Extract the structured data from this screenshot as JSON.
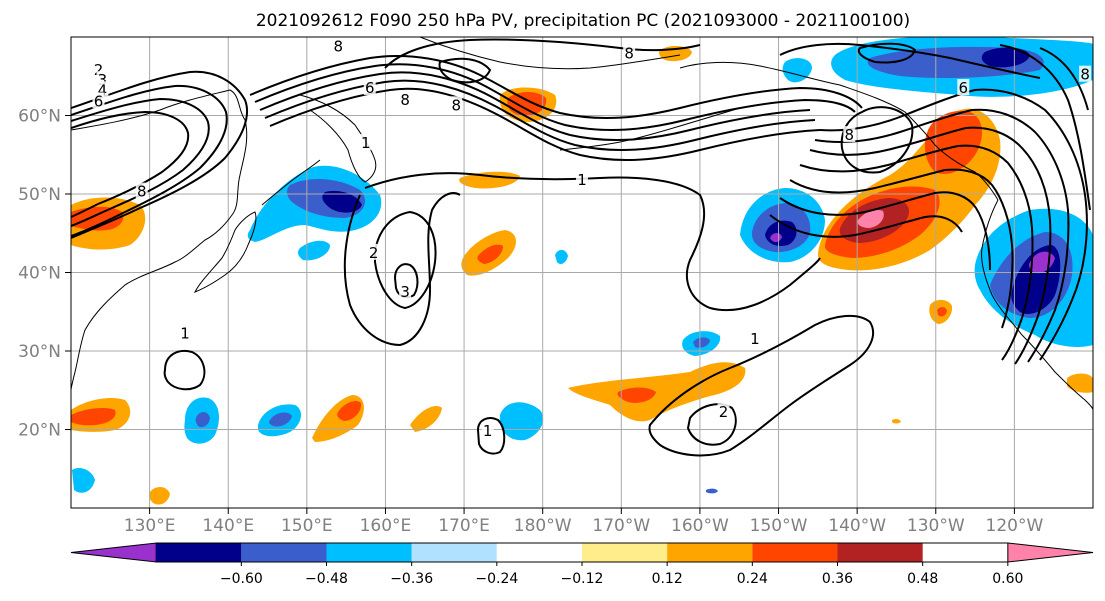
{
  "title": "2021092612 F090 250 hPa PV, precipitation PC (2021093000 - 2021100100)",
  "colors": {
    "grid": "#a9a9a9",
    "contour": "#000000",
    "coast": "#000000",
    "frame": "#000000"
  },
  "map": {
    "lon_range": [
      120,
      250
    ],
    "lat_range": [
      10,
      70
    ],
    "lon_ticks": [
      {
        "lon": 130,
        "label": "130°E"
      },
      {
        "lon": 140,
        "label": "140°E"
      },
      {
        "lon": 150,
        "label": "150°E"
      },
      {
        "lon": 160,
        "label": "160°E"
      },
      {
        "lon": 170,
        "label": "170°E"
      },
      {
        "lon": 180,
        "label": "180°W"
      },
      {
        "lon": 190,
        "label": "170°W"
      },
      {
        "lon": 200,
        "label": "160°W"
      },
      {
        "lon": 210,
        "label": "150°W"
      },
      {
        "lon": 220,
        "label": "140°W"
      },
      {
        "lon": 230,
        "label": "130°W"
      },
      {
        "lon": 240,
        "label": "120°W"
      }
    ],
    "lat_ticks": [
      {
        "lat": 20,
        "label": "20°N"
      },
      {
        "lat": 30,
        "label": "30°N"
      },
      {
        "lat": 40,
        "label": "40°N"
      },
      {
        "lat": 50,
        "label": "50°N"
      },
      {
        "lat": 60,
        "label": "60°N"
      }
    ],
    "pv_contour_labels": [
      {
        "text": "8",
        "lon": 154,
        "lat": 68.8
      },
      {
        "text": "8",
        "lon": 191,
        "lat": 67.9
      },
      {
        "text": "2",
        "lon": 123.5,
        "lat": 65.8
      },
      {
        "text": "3",
        "lon": 124,
        "lat": 64.5
      },
      {
        "text": "4",
        "lon": 124,
        "lat": 63.2
      },
      {
        "text": "6",
        "lon": 123.5,
        "lat": 61.8
      },
      {
        "text": "6",
        "lon": 158,
        "lat": 63.5
      },
      {
        "text": "8",
        "lon": 162.5,
        "lat": 62
      },
      {
        "text": "8",
        "lon": 169,
        "lat": 61.3
      },
      {
        "text": "1",
        "lon": 157.5,
        "lat": 56.5
      },
      {
        "text": "8",
        "lon": 129,
        "lat": 50.3
      },
      {
        "text": "1",
        "lon": 185,
        "lat": 51.8
      },
      {
        "text": "2",
        "lon": 158.5,
        "lat": 42.5
      },
      {
        "text": "3",
        "lon": 162.5,
        "lat": 37.5
      },
      {
        "text": "1",
        "lon": 134.5,
        "lat": 32.2
      },
      {
        "text": "1",
        "lon": 207,
        "lat": 31.5
      },
      {
        "text": "2",
        "lon": 203,
        "lat": 22.2
      },
      {
        "text": "1",
        "lon": 173,
        "lat": 19.8
      },
      {
        "text": "8",
        "lon": 219,
        "lat": 57.5
      },
      {
        "text": "6",
        "lon": 233.5,
        "lat": 63.5
      },
      {
        "text": "8",
        "lon": 249,
        "lat": 65.2
      }
    ]
  },
  "colorbar": {
    "colors": [
      "#9932CC",
      "#00008B",
      "#3A5FCD",
      "#00BFFF",
      "#B0E2FF",
      "#FFFFFF",
      "#FFEC8B",
      "#FFA500",
      "#FF4500",
      "#B22222",
      "#FF82AB"
    ],
    "tick_labels": [
      "−0.60",
      "−0.48",
      "−0.36",
      "−0.24",
      "−0.12",
      "0.12",
      "0.24",
      "0.36",
      "0.48",
      "0.60"
    ]
  }
}
